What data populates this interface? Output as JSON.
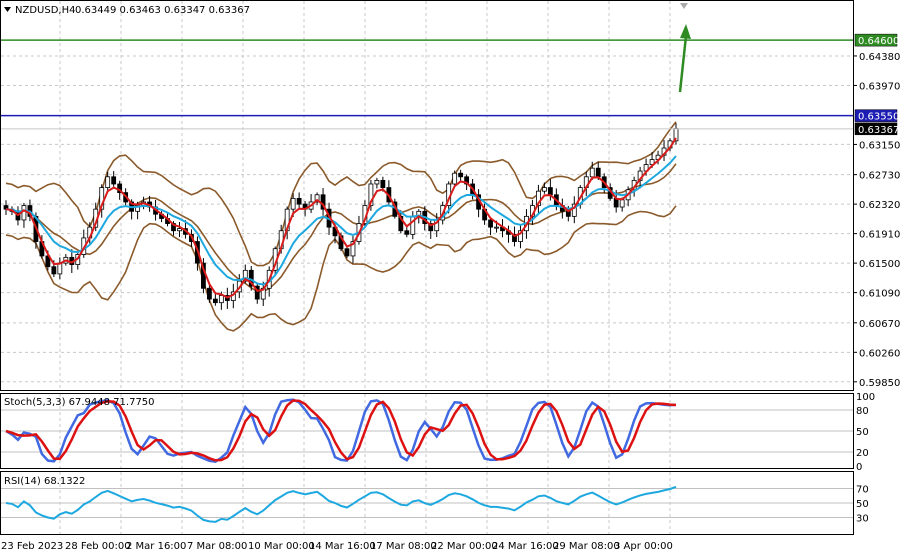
{
  "header": {
    "symbol": "NZDUSD,H4",
    "ohlc": "0.63449 0.63463 0.63347 0.63367"
  },
  "price_axis": {
    "ticks": [
      "0.64380",
      "0.63970",
      "0.63150",
      "0.62730",
      "0.62320",
      "0.61910",
      "0.61500",
      "0.61090",
      "0.60670",
      "0.60260",
      "0.59850"
    ],
    "ymin": 0.5975,
    "ymax": 0.6513
  },
  "levels": {
    "resistance": {
      "value": 0.646,
      "label": "0.64600",
      "color": "#2e8b22"
    },
    "pivot": {
      "value": 0.6355,
      "label": "0.63550",
      "color": "#1c1cb4"
    },
    "current": {
      "value": 0.63367,
      "label": "0.63367"
    }
  },
  "stoch": {
    "label": "Stoch(5,3,3) 67.9448 71.7750",
    "ticks": [
      "100",
      "80",
      "50",
      "20",
      "0"
    ],
    "main_color": "#4169e1",
    "signal_color": "#dd1111"
  },
  "rsi": {
    "label": "RSI(14) 68.1322",
    "ticks": [
      "70",
      "50",
      "30"
    ],
    "color": "#1ea8e0"
  },
  "time_axis": {
    "labels": [
      "23 Feb 2023",
      "28 Feb 00:00",
      "2 Mar 16:00",
      "7 Mar 08:00",
      "10 Mar 00:00",
      "14 Mar 16:00",
      "17 Mar 08:00",
      "22 Mar 00:00",
      "24 Mar 16:00",
      "29 Mar 08:00",
      "3 Apr 00:00"
    ]
  },
  "colors": {
    "bollinger": "#8b5a2b",
    "ema_fast": "#d91a1a",
    "ema_slow": "#1ea8e0",
    "arrow": "#2e8b22"
  },
  "chart_data": {
    "type": "candlestick",
    "symbol": "NZDUSD",
    "timeframe": "H4",
    "ylim": [
      0.5975,
      0.6513
    ],
    "close": [
      0.6225,
      0.6222,
      0.621,
      0.623,
      0.6215,
      0.618,
      0.616,
      0.6145,
      0.6135,
      0.615,
      0.6158,
      0.6148,
      0.6162,
      0.6185,
      0.62,
      0.6225,
      0.6255,
      0.627,
      0.626,
      0.6248,
      0.6235,
      0.6222,
      0.623,
      0.6235,
      0.6228,
      0.6218,
      0.6212,
      0.6205,
      0.6195,
      0.6198,
      0.619,
      0.618,
      0.615,
      0.6115,
      0.61,
      0.6095,
      0.6105,
      0.6098,
      0.611,
      0.6125,
      0.614,
      0.6118,
      0.61,
      0.6115,
      0.614,
      0.617,
      0.6195,
      0.6225,
      0.624,
      0.6232,
      0.6225,
      0.6235,
      0.6245,
      0.6225,
      0.62,
      0.6188,
      0.617,
      0.616,
      0.618,
      0.6205,
      0.623,
      0.626,
      0.6265,
      0.6255,
      0.6235,
      0.6215,
      0.6195,
      0.619,
      0.6215,
      0.6222,
      0.6205,
      0.6195,
      0.621,
      0.623,
      0.626,
      0.6275,
      0.627,
      0.626,
      0.6245,
      0.6225,
      0.621,
      0.62,
      0.62,
      0.6195,
      0.619,
      0.618,
      0.6195,
      0.6215,
      0.623,
      0.625,
      0.6255,
      0.6245,
      0.623,
      0.6222,
      0.6215,
      0.6232,
      0.6255,
      0.627,
      0.6282,
      0.627,
      0.6255,
      0.624,
      0.6228,
      0.6238,
      0.6252,
      0.6265,
      0.6278,
      0.6287,
      0.6294,
      0.63,
      0.631,
      0.632,
      0.6337
    ]
  }
}
